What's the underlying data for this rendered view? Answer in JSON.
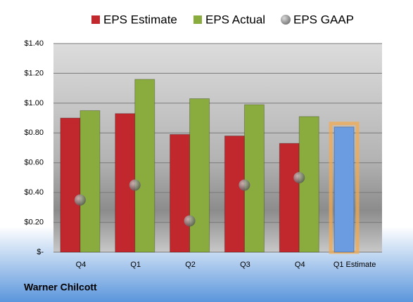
{
  "chart_data": {
    "type": "bar",
    "categories": [
      "Q4",
      "Q1",
      "Q2",
      "Q3",
      "Q4",
      "Q1 Estimate"
    ],
    "series": [
      {
        "name": "EPS Estimate",
        "color": "#c0282d",
        "values": [
          0.9,
          0.93,
          0.79,
          0.78,
          0.73,
          0.84
        ],
        "colors": [
          "#c0282d",
          "#c0282d",
          "#c0282d",
          "#c0282d",
          "#c0282d",
          "#6b9be0"
        ]
      },
      {
        "name": "EPS Actual",
        "color": "#8aac3e",
        "values": [
          0.95,
          1.16,
          1.03,
          0.99,
          0.91,
          null
        ]
      },
      {
        "name": "EPS GAAP",
        "color": "#9a9a9a",
        "marker": "circle",
        "values": [
          0.35,
          0.45,
          0.21,
          0.45,
          0.5,
          null
        ]
      }
    ],
    "ylim": [
      0,
      1.4
    ],
    "yticks": [
      {
        "value": 0,
        "label": "$-"
      },
      {
        "value": 0.2,
        "label": "$0.20"
      },
      {
        "value": 0.4,
        "label": "$0.40"
      },
      {
        "value": 0.6,
        "label": "$0.60"
      },
      {
        "value": 0.8,
        "label": "$0.80"
      },
      {
        "value": 1.0,
        "label": "$1.00"
      },
      {
        "value": 1.2,
        "label": "$1.20"
      },
      {
        "value": 1.4,
        "label": "$1.40"
      }
    ],
    "grid": true,
    "legend": "top",
    "source": "Warner Chilcott"
  }
}
